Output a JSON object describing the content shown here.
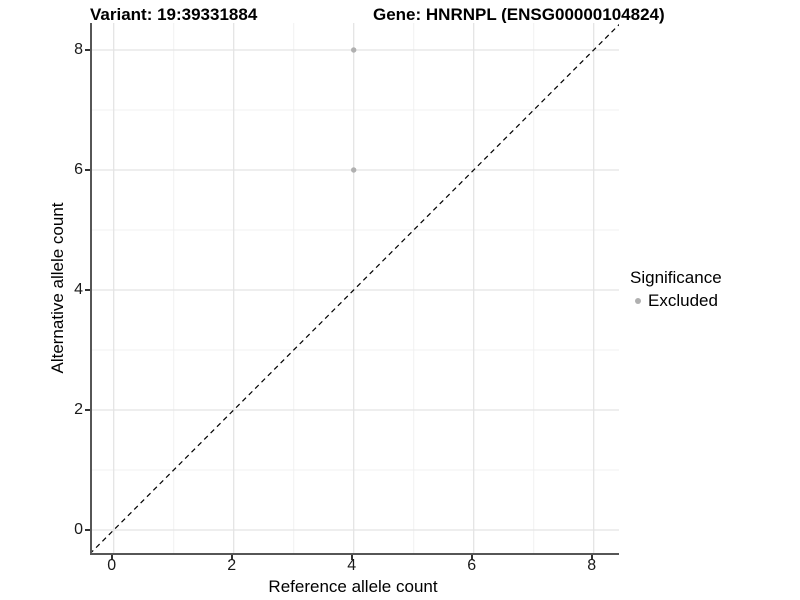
{
  "figure": {
    "title_left": "Variant: 19:39331884",
    "title_right": "Gene: HNRNPL (ENSG00000104824)"
  },
  "legend": {
    "title": "Significance",
    "items": [
      {
        "label": "Excluded",
        "color": "#b0b0b0"
      }
    ]
  },
  "chart_data": {
    "type": "scatter",
    "title_left": "Variant: 19:39331884",
    "title_right": "Gene: HNRNPL (ENSG00000104824)",
    "xlabel": "Reference allele count",
    "ylabel": "Alternative allele count",
    "xlim": [
      -0.4,
      8.45
    ],
    "ylim": [
      -0.4,
      8.45
    ],
    "x_ticks": [
      0,
      2,
      4,
      6,
      8
    ],
    "y_ticks": [
      0,
      2,
      4,
      6,
      8
    ],
    "x_minor_ticks": [
      1,
      3,
      5,
      7
    ],
    "y_minor_ticks": [
      1,
      3,
      5,
      7
    ],
    "grid": "on",
    "legend_position": "right",
    "series": [
      {
        "name": "Excluded",
        "color": "#b0b0b0",
        "points": [
          {
            "x": 4,
            "y": 8
          },
          {
            "x": 4,
            "y": 6
          }
        ]
      }
    ],
    "identity_line": {
      "type": "dashed",
      "equation": "y = x",
      "color": "#000000"
    },
    "colors": {
      "major_grid": "#e4e4e4",
      "minor_grid": "#f1f1f1",
      "axis_line": "#565656",
      "tick_mark": "#333333",
      "point": "#b0b0b0"
    }
  }
}
